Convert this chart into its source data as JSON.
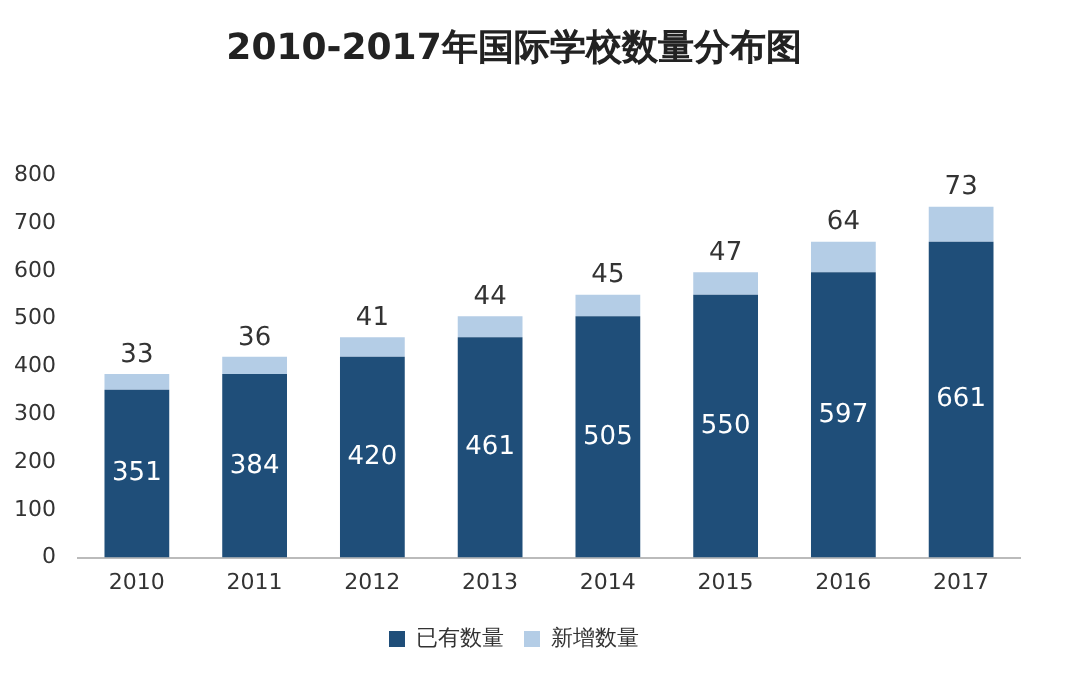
{
  "chart_data": {
    "type": "bar",
    "title": "2010-2017年国际学校数量分布图",
    "categories": [
      "2010",
      "2011",
      "2012",
      "2013",
      "2014",
      "2015",
      "2016",
      "2017"
    ],
    "stacked": true,
    "data_labels": true,
    "legend": "bottom",
    "grid": false,
    "ylim": [
      0,
      800
    ],
    "yticks": [
      0,
      100,
      200,
      300,
      400,
      500,
      600,
      700,
      800
    ],
    "series": [
      {
        "name": "已有数量",
        "color": "#1f4e79",
        "values": [
          351,
          384,
          420,
          461,
          505,
          550,
          597,
          661
        ]
      },
      {
        "name": "新增数量",
        "color": "#b4cde6",
        "values": [
          33,
          36,
          41,
          44,
          45,
          47,
          64,
          73
        ]
      }
    ]
  }
}
